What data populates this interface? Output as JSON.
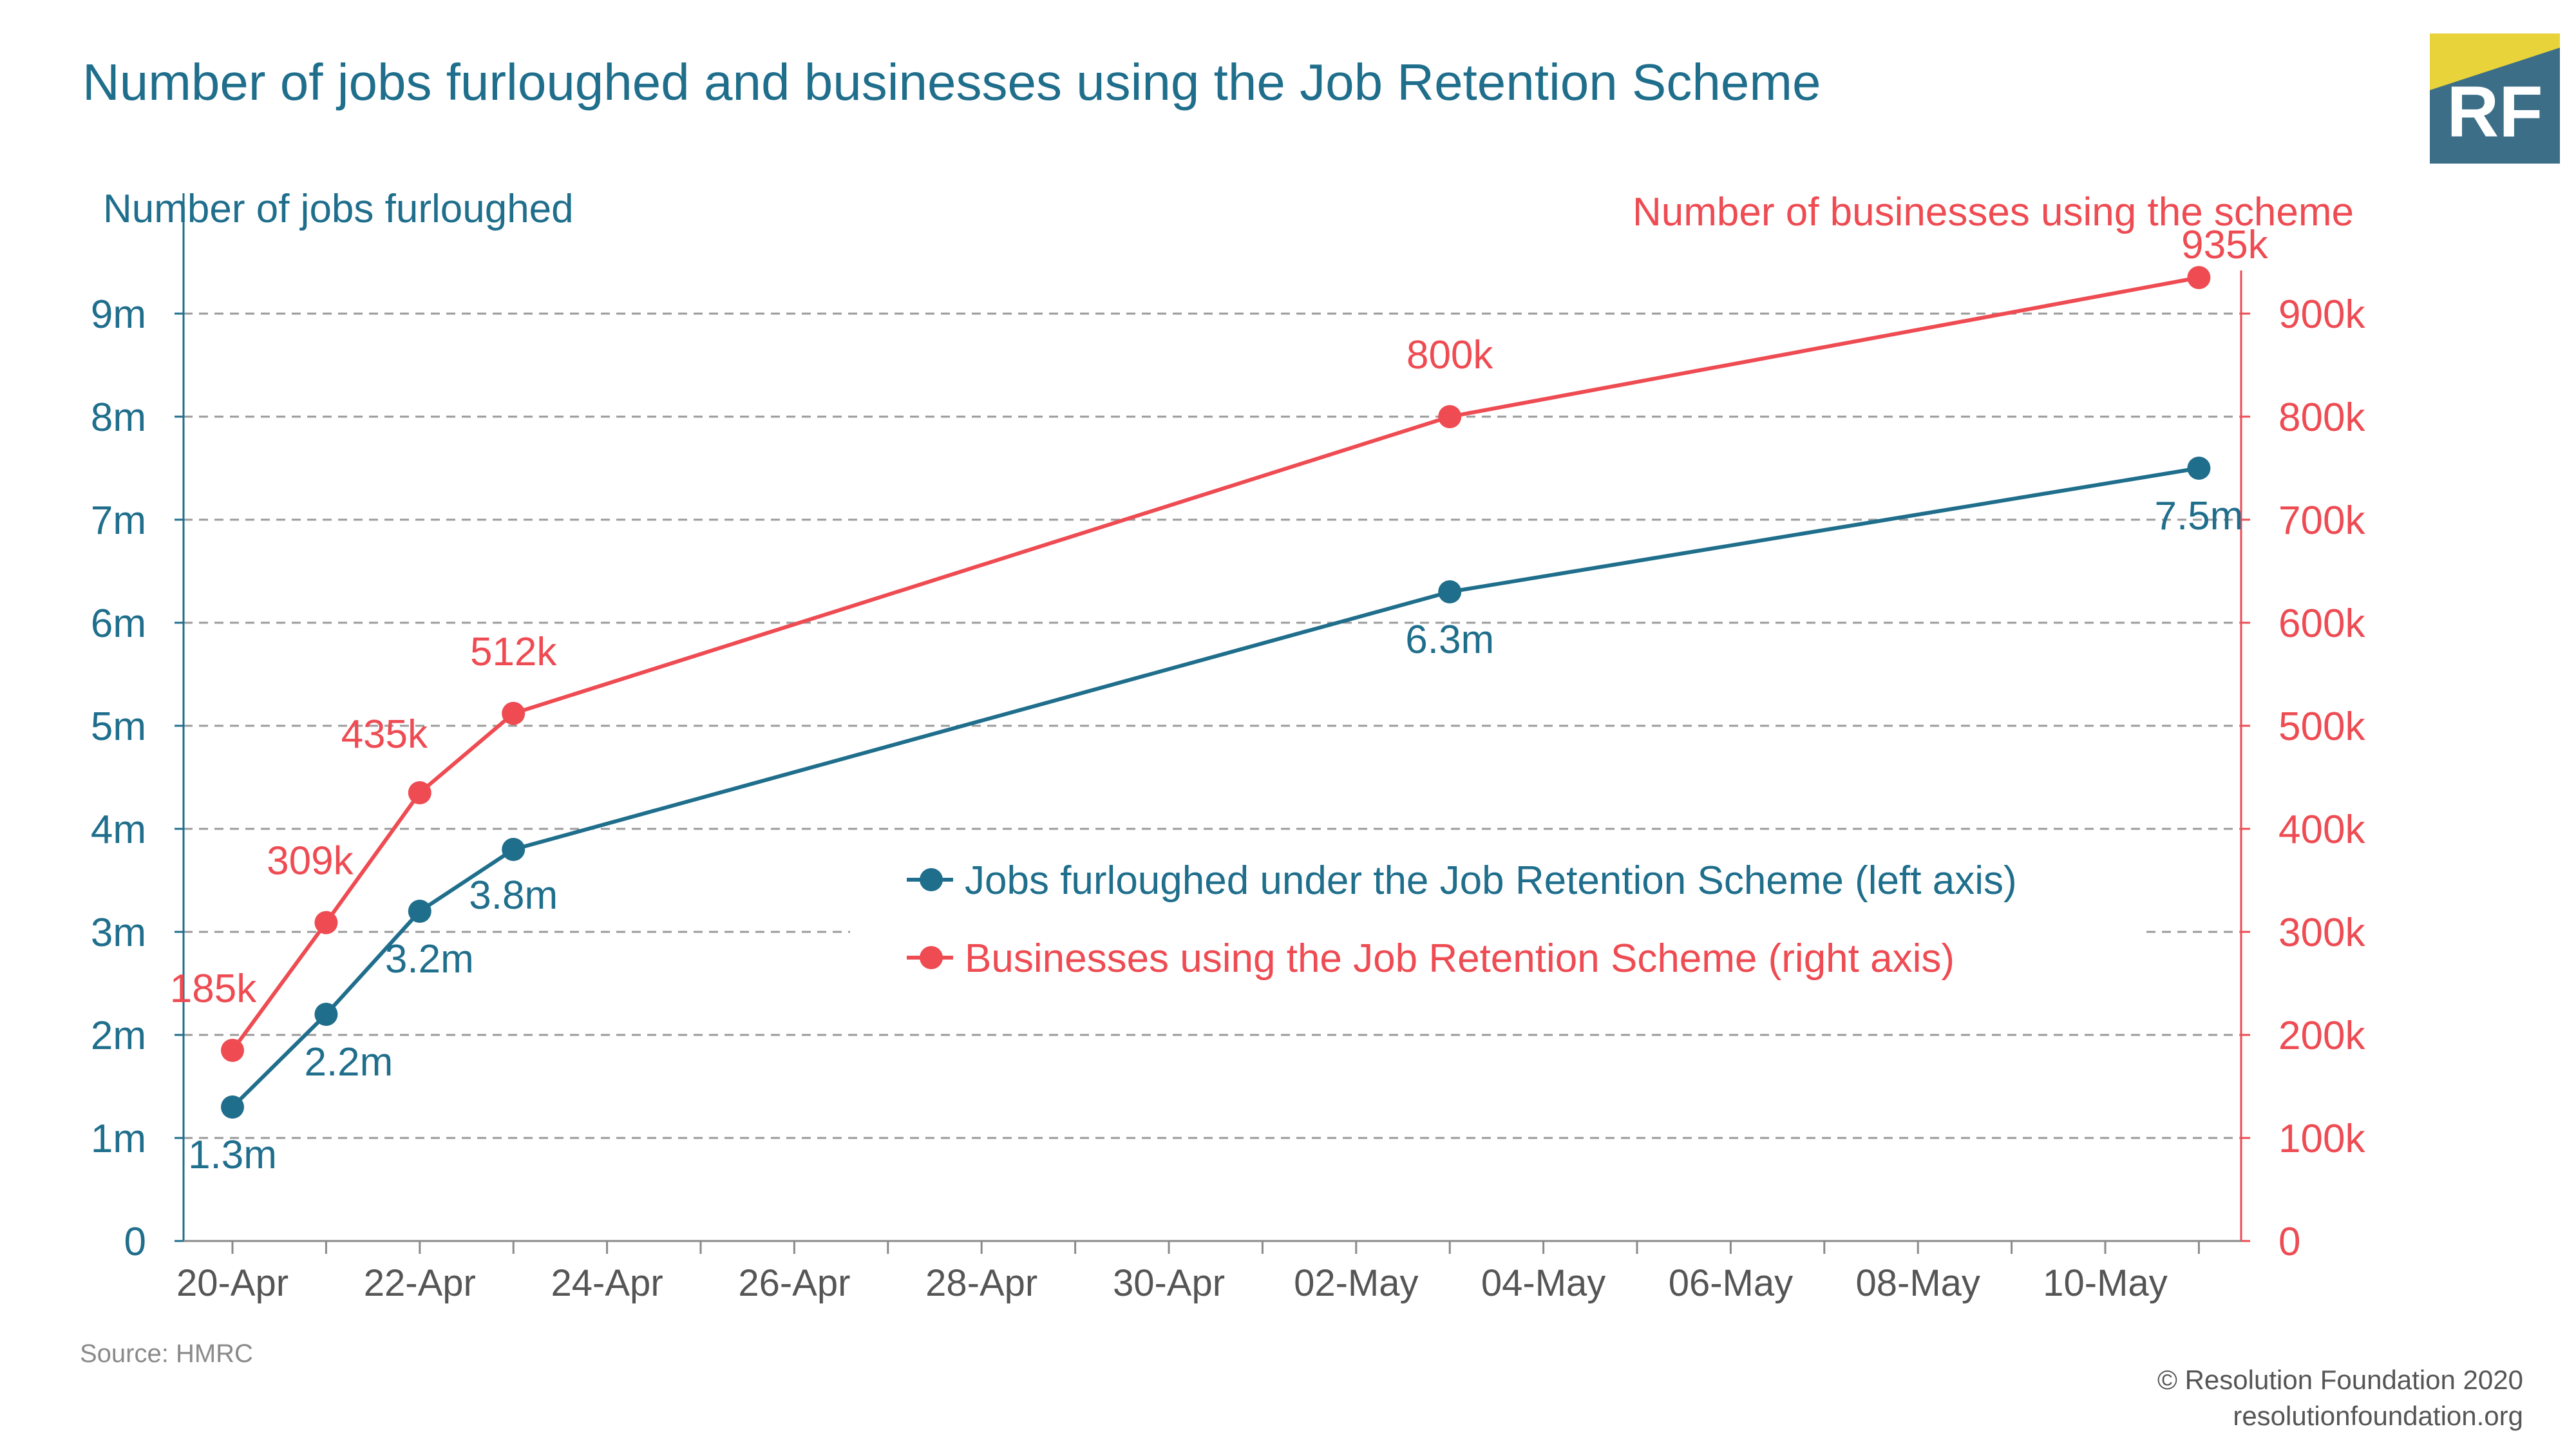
{
  "title": "Number of jobs furloughed and businesses using the Job Retention Scheme",
  "logo_text": "RF",
  "source": "Source: HMRC",
  "copyright": "© Resolution Foundation 2020",
  "website": "resolutionfoundation.org",
  "colors": {
    "blue": "#1f6e8c",
    "red": "#ee4b52",
    "logo_bg": "#3c6e87",
    "logo_accent": "#e8d33a"
  },
  "chart_data": {
    "type": "line",
    "left_axis_label": "Number of jobs furloughed",
    "right_axis_label": "Number of businesses using the scheme",
    "x_ticks": [
      "20-Apr",
      "22-Apr",
      "24-Apr",
      "26-Apr",
      "28-Apr",
      "30-Apr",
      "02-May",
      "04-May",
      "06-May",
      "08-May",
      "10-May"
    ],
    "xlim": [
      "2020-04-19",
      "2020-05-12"
    ],
    "left_ticks": [
      "0",
      "1m",
      "2m",
      "3m",
      "4m",
      "5m",
      "6m",
      "7m",
      "8m",
      "9m"
    ],
    "right_ticks": [
      "0",
      "100k",
      "200k",
      "300k",
      "400k",
      "500k",
      "600k",
      "700k",
      "800k",
      "900k"
    ],
    "left_ylim": [
      0,
      9.5
    ],
    "right_ylim": [
      0,
      950
    ],
    "grid": true,
    "legend_position": "center-right",
    "series": [
      {
        "name": "Jobs furloughed under the Job Retention Scheme (left axis)",
        "axis": "left",
        "color": "#1f6e8c",
        "x": [
          "2020-04-20",
          "2020-04-21",
          "2020-04-22",
          "2020-04-23",
          "2020-05-03",
          "2020-05-11"
        ],
        "y": [
          1.3,
          2.2,
          3.2,
          3.8,
          6.3,
          7.5
        ],
        "labels": [
          "1.3m",
          "2.2m",
          "3.2m",
          "3.8m",
          "6.3m",
          "7.5m"
        ]
      },
      {
        "name": "Businesses using the Job Retention Scheme (right axis)",
        "axis": "right",
        "color": "#ee4b52",
        "x": [
          "2020-04-20",
          "2020-04-21",
          "2020-04-22",
          "2020-04-23",
          "2020-05-03",
          "2020-05-11"
        ],
        "y": [
          185,
          309,
          435,
          512,
          800,
          935
        ],
        "labels": [
          "185k",
          "309k",
          "435k",
          "512k",
          "800k",
          "935k"
        ]
      }
    ]
  }
}
